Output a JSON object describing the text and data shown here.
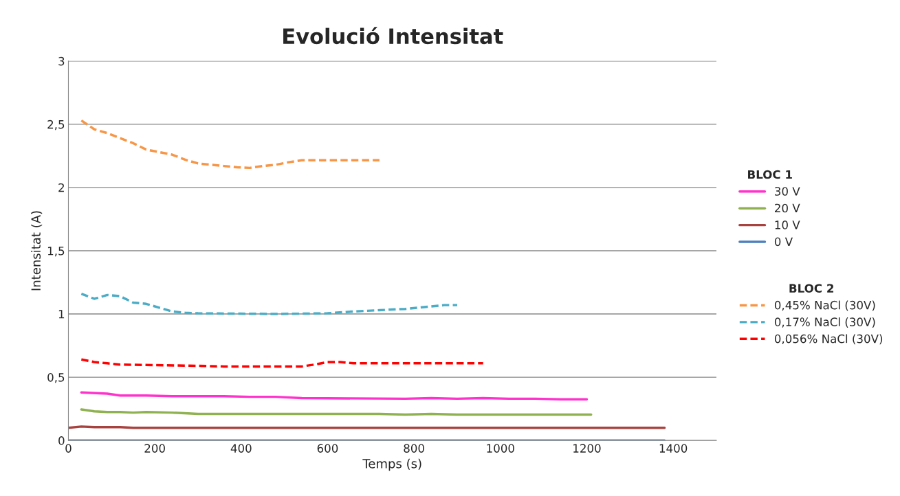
{
  "chart_data": {
    "type": "line",
    "title": "Evolució Intensitat",
    "xlabel": "Temps (s)",
    "ylabel": "Intensitat (A)",
    "legend_title": "BLOC 1",
    "annotations": [
      "BLOC 2"
    ],
    "xlim": [
      0,
      1500
    ],
    "xticks": [
      0,
      200,
      400,
      600,
      800,
      1000,
      1200,
      1400
    ],
    "ylim": [
      0,
      3
    ],
    "yticks": [
      0,
      {
        "value": 0.5,
        "label": "0,5"
      },
      1,
      {
        "value": 1.5,
        "label": "1,5"
      },
      2,
      {
        "value": 2.5,
        "label": "2,5"
      },
      3
    ],
    "grid": "y",
    "legend": "right",
    "marker": "none",
    "series": [
      {
        "name": "30 V",
        "color": "#ff33cc",
        "line_style": "solid",
        "x": [
          30,
          90,
          120,
          180,
          240,
          360,
          420,
          480,
          540,
          780,
          840,
          900,
          960,
          1020,
          1080,
          1140,
          1200
        ],
        "values": [
          0.38,
          0.37,
          0.355,
          0.355,
          0.35,
          0.35,
          0.345,
          0.345,
          0.335,
          0.33,
          0.335,
          0.33,
          0.335,
          0.33,
          0.33,
          0.325,
          0.325
        ]
      },
      {
        "name": "20 V",
        "color": "#8fb150",
        "line_style": "solid",
        "x": [
          30,
          60,
          90,
          120,
          150,
          180,
          240,
          300,
          720,
          780,
          840,
          900,
          1210
        ],
        "values": [
          0.245,
          0.23,
          0.225,
          0.225,
          0.22,
          0.225,
          0.22,
          0.21,
          0.21,
          0.205,
          0.21,
          0.205,
          0.205
        ]
      },
      {
        "name": "10 V",
        "color": "#a8423f",
        "line_style": "solid",
        "x": [
          0,
          30,
          60,
          120,
          150,
          1380
        ],
        "values": [
          0.1,
          0.11,
          0.105,
          0.105,
          0.1,
          0.1
        ]
      },
      {
        "name": "0 V",
        "color": "#4f81bd",
        "line_style": "solid",
        "x": [
          0,
          1380
        ],
        "values": [
          0,
          0
        ]
      },
      {
        "name": "0,45% NaCl (30V)",
        "color": "#f79646",
        "line_style": "dashed",
        "x": [
          30,
          60,
          90,
          120,
          150,
          180,
          210,
          240,
          270,
          300,
          330,
          360,
          390,
          420,
          450,
          480,
          510,
          540,
          570,
          600,
          630,
          660,
          690,
          720
        ],
        "values": [
          2.53,
          2.46,
          2.43,
          2.39,
          2.35,
          2.3,
          2.28,
          2.26,
          2.22,
          2.19,
          2.18,
          2.17,
          2.16,
          2.155,
          2.17,
          2.18,
          2.2,
          2.215,
          2.215,
          2.215,
          2.215,
          2.215,
          2.215,
          2.215
        ]
      },
      {
        "name": "0,17% NaCl (30V)",
        "color": "#4bacc6",
        "line_style": "dashed",
        "x": [
          30,
          60,
          90,
          120,
          150,
          180,
          210,
          240,
          270,
          300,
          480,
          600,
          660,
          720,
          780,
          840,
          870,
          900
        ],
        "values": [
          1.16,
          1.12,
          1.15,
          1.14,
          1.09,
          1.08,
          1.05,
          1.02,
          1.01,
          1.005,
          1.0,
          1.005,
          1.02,
          1.03,
          1.04,
          1.06,
          1.07,
          1.07
        ]
      },
      {
        "name": "0,056% NaCl (30V)",
        "color": "#ff0000",
        "line_style": "dashed",
        "x": [
          30,
          60,
          90,
          120,
          300,
          360,
          540,
          570,
          600,
          630,
          660,
          960
        ],
        "values": [
          0.64,
          0.62,
          0.61,
          0.6,
          0.59,
          0.585,
          0.585,
          0.6,
          0.62,
          0.62,
          0.61,
          0.61
        ]
      }
    ]
  }
}
